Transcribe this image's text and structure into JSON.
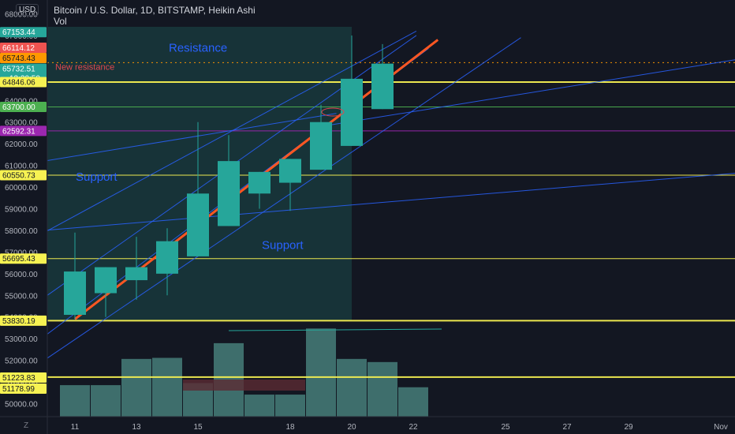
{
  "header": {
    "title": "Bitcoin / U.S. Dollar, 1D, BITSTAMP, Heikin Ashi",
    "volume_label": "Vol"
  },
  "currency_badge": "USD",
  "zoom_button": "Z",
  "colors": {
    "background": "#131722",
    "bull_candle": "#26a69a",
    "volume_bar": "#4e8c86",
    "volume_bar_dark": "#5b2b33",
    "hline_yellow": "#f7f252",
    "hline_green": "#4caf50",
    "hline_purple": "#9c27b0",
    "trend_blue": "#2962ff",
    "trend_orange": "#ff5722",
    "zone_fill": "#1b4a4a",
    "annotation_red": "#e0464f"
  },
  "annotations": {
    "resistance": "Resistance",
    "new_resistance": "New resistance",
    "support_left": "Support",
    "support_mid": "Support"
  },
  "chart_data": {
    "type": "candlestick",
    "title": "Bitcoin / U.S. Dollar, 1D, BITSTAMP, Heikin Ashi",
    "ylim": [
      49500,
      68200
    ],
    "y_ticks": [
      50000,
      51000,
      52000,
      53000,
      54000,
      55000,
      56000,
      57000,
      58000,
      59000,
      60000,
      61000,
      62000,
      63000,
      64000,
      65000,
      66000,
      67000,
      68000
    ],
    "x_ticks": [
      "11",
      "13",
      "15",
      "18",
      "20",
      "22",
      "25",
      "27",
      "29",
      "Nov"
    ],
    "candles": [
      {
        "day": 11,
        "open": 54100,
        "close": 56100,
        "high": 57900,
        "low": 53900
      },
      {
        "day": 12,
        "open": 55100,
        "close": 56300,
        "high": 56300,
        "low": 54000
      },
      {
        "day": 13,
        "open": 55700,
        "close": 56300,
        "high": 57700,
        "low": 54800
      },
      {
        "day": 14,
        "open": 56000,
        "close": 57500,
        "high": 58100,
        "low": 55000
      },
      {
        "day": 15,
        "open": 56800,
        "close": 59700,
        "high": 63000,
        "low": 56800
      },
      {
        "day": 16,
        "open": 58200,
        "close": 61200,
        "high": 62400,
        "low": 58200
      },
      {
        "day": 17,
        "open": 59700,
        "close": 60700,
        "high": 60700,
        "low": 59000
      },
      {
        "day": 18,
        "open": 60200,
        "close": 61300,
        "high": 61300,
        "low": 58900
      },
      {
        "day": 19,
        "open": 60800,
        "close": 63000,
        "high": 63800,
        "low": 60800
      },
      {
        "day": 20,
        "open": 61900,
        "close": 65000,
        "high": 67000,
        "low": 61900
      },
      {
        "day": 21,
        "open": 63600,
        "close": 65700,
        "high": 66600,
        "low": 63600
      }
    ],
    "volume_top": [
      53500,
      55.0
    ],
    "volume": [
      {
        "day": 11,
        "value": 0.3
      },
      {
        "day": 12,
        "value": 0.3
      },
      {
        "day": 13,
        "value": 0.55
      },
      {
        "day": 14,
        "value": 0.56
      },
      {
        "day": 15,
        "value": 0.32
      },
      {
        "day": 16,
        "value": 0.7
      },
      {
        "day": 17,
        "value": 0.21
      },
      {
        "day": 18,
        "value": 0.21
      },
      {
        "day": 19,
        "value": 0.84
      },
      {
        "day": 20,
        "value": 0.55
      },
      {
        "day": 21,
        "value": 0.52
      },
      {
        "day": 22,
        "value": 0.28
      }
    ],
    "price_labels": [
      {
        "text": "67153.44",
        "value": 67153.44,
        "color": "#26a69a"
      },
      {
        "text": "66114.12",
        "value": 66114.12,
        "color": "#ef5350"
      },
      {
        "text": "65743.43",
        "value": 65743.43,
        "color": "#ff9800"
      },
      {
        "text": "65732.51",
        "value": 65732.51,
        "color": "#26a69a",
        "sub": "13:20:50"
      },
      {
        "text": "64846.06",
        "value": 64846.06,
        "color": "#f7f252"
      },
      {
        "text": "63700.00",
        "value": 63700.0,
        "color": "#4caf50"
      },
      {
        "text": "62592.31",
        "value": 62592.31,
        "color": "#9c27b0"
      },
      {
        "text": "60550.73",
        "value": 60550.73,
        "color": "#f7f252"
      },
      {
        "text": "56695.43",
        "value": 56695.43,
        "color": "#f7f252"
      },
      {
        "text": "53830.19",
        "value": 53830.19,
        "color": "#f7f252"
      },
      {
        "text": "51223.83",
        "value": 51223.83,
        "color": "#f7f252"
      },
      {
        "text": "51178.99",
        "value": 51178.99,
        "color": "#f7f252"
      }
    ],
    "horizontal_lines": [
      {
        "value": 65743.43,
        "style": "dotted",
        "color": "#ff9800"
      },
      {
        "value": 64846.06,
        "style": "solid",
        "color": "#f7f252"
      },
      {
        "value": 63700.0,
        "style": "solid",
        "color": "#4caf50"
      },
      {
        "value": 62592.31,
        "style": "solid",
        "color": "#9c27b0"
      },
      {
        "value": 60550.73,
        "style": "solid",
        "color": "#f7f252"
      },
      {
        "value": 56695.43,
        "style": "solid",
        "color": "#f7f252"
      },
      {
        "value": 53830.19,
        "style": "solid",
        "color": "#f7f252"
      },
      {
        "value": 51223.83,
        "style": "solid",
        "color": "#f7f252"
      }
    ],
    "trend_lines": [
      {
        "from": [
          10.0,
          54900
        ],
        "to": [
          22.1,
          67000
        ],
        "color": "#2962ff"
      },
      {
        "from": [
          10.0,
          57900
        ],
        "to": [
          22.1,
          67200
        ],
        "color": "#2962ff"
      },
      {
        "from": [
          10.0,
          53100
        ],
        "to": [
          22.5,
          66400
        ],
        "color": "#2962ff"
      },
      {
        "from": [
          10.0,
          52000
        ],
        "to": [
          25.5,
          66900
        ],
        "color": "#2962ff"
      },
      {
        "from": [
          10.0,
          61200
        ],
        "to": [
          19.5,
          63400
        ],
        "color": "#2962ff"
      },
      {
        "from": [
          10.0,
          58000
        ],
        "to": [
          33.0,
          60700
        ],
        "color": "#2962ff"
      },
      {
        "from": [
          19.0,
          62800
        ],
        "to": [
          33.0,
          66000
        ],
        "color": "#2962ff"
      },
      {
        "from": [
          11.0,
          53900
        ],
        "to": [
          22.8,
          66800
        ],
        "color": "#ff5722"
      }
    ]
  }
}
